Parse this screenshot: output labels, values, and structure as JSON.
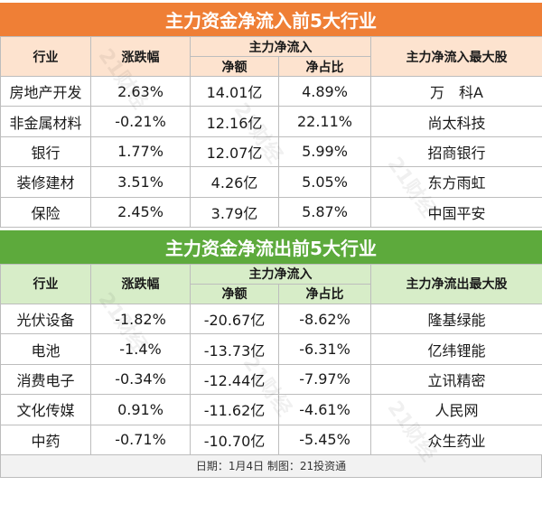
{
  "inflow": {
    "title": "主力资金净流入前5大行业",
    "headers": {
      "industry": "行业",
      "change": "涨跌幅",
      "group": "主力净流入",
      "net": "净额",
      "ratio": "净占比",
      "top_stock": "主力净流入最大股"
    },
    "rows": [
      {
        "industry": "房地产开发",
        "change": "2.63%",
        "net": "14.01亿",
        "ratio": "4.89%",
        "stock": "万　科A"
      },
      {
        "industry": "非金属材料",
        "change": "-0.21%",
        "net": "12.16亿",
        "ratio": "22.11%",
        "stock": "尚太科技"
      },
      {
        "industry": "银行",
        "change": "1.77%",
        "net": "12.07亿",
        "ratio": "5.99%",
        "stock": "招商银行"
      },
      {
        "industry": "装修建材",
        "change": "3.51%",
        "net": "4.26亿",
        "ratio": "5.05%",
        "stock": "东方雨虹"
      },
      {
        "industry": "保险",
        "change": "2.45%",
        "net": "3.79亿",
        "ratio": "5.87%",
        "stock": "中国平安"
      }
    ]
  },
  "outflow": {
    "title": "主力资金净流出前5大行业",
    "headers": {
      "industry": "行业",
      "change": "涨跌幅",
      "group": "主力净流入",
      "net": "净额",
      "ratio": "净占比",
      "top_stock": "主力净流出最大股"
    },
    "rows": [
      {
        "industry": "光伏设备",
        "change": "-1.82%",
        "net": "-20.67亿",
        "ratio": "-8.62%",
        "stock": "隆基绿能"
      },
      {
        "industry": "电池",
        "change": "-1.4%",
        "net": "-13.73亿",
        "ratio": "-6.31%",
        "stock": "亿纬锂能"
      },
      {
        "industry": "消费电子",
        "change": "-0.34%",
        "net": "-12.44亿",
        "ratio": "-7.97%",
        "stock": "立讯精密"
      },
      {
        "industry": "文化传媒",
        "change": "0.91%",
        "net": "-11.62亿",
        "ratio": "-4.61%",
        "stock": "人民网"
      },
      {
        "industry": "中药",
        "change": "-0.71%",
        "net": "-10.70亿",
        "ratio": "-5.45%",
        "stock": "众生药业"
      }
    ]
  },
  "footer": "日期：1月4日  制图：21投资通",
  "watermark": "21财经",
  "colors": {
    "inflow_accent": "#ef7f36",
    "inflow_header_bg": "#fde3cf",
    "outflow_accent": "#5daa3c",
    "outflow_header_bg": "#d7edc8"
  }
}
